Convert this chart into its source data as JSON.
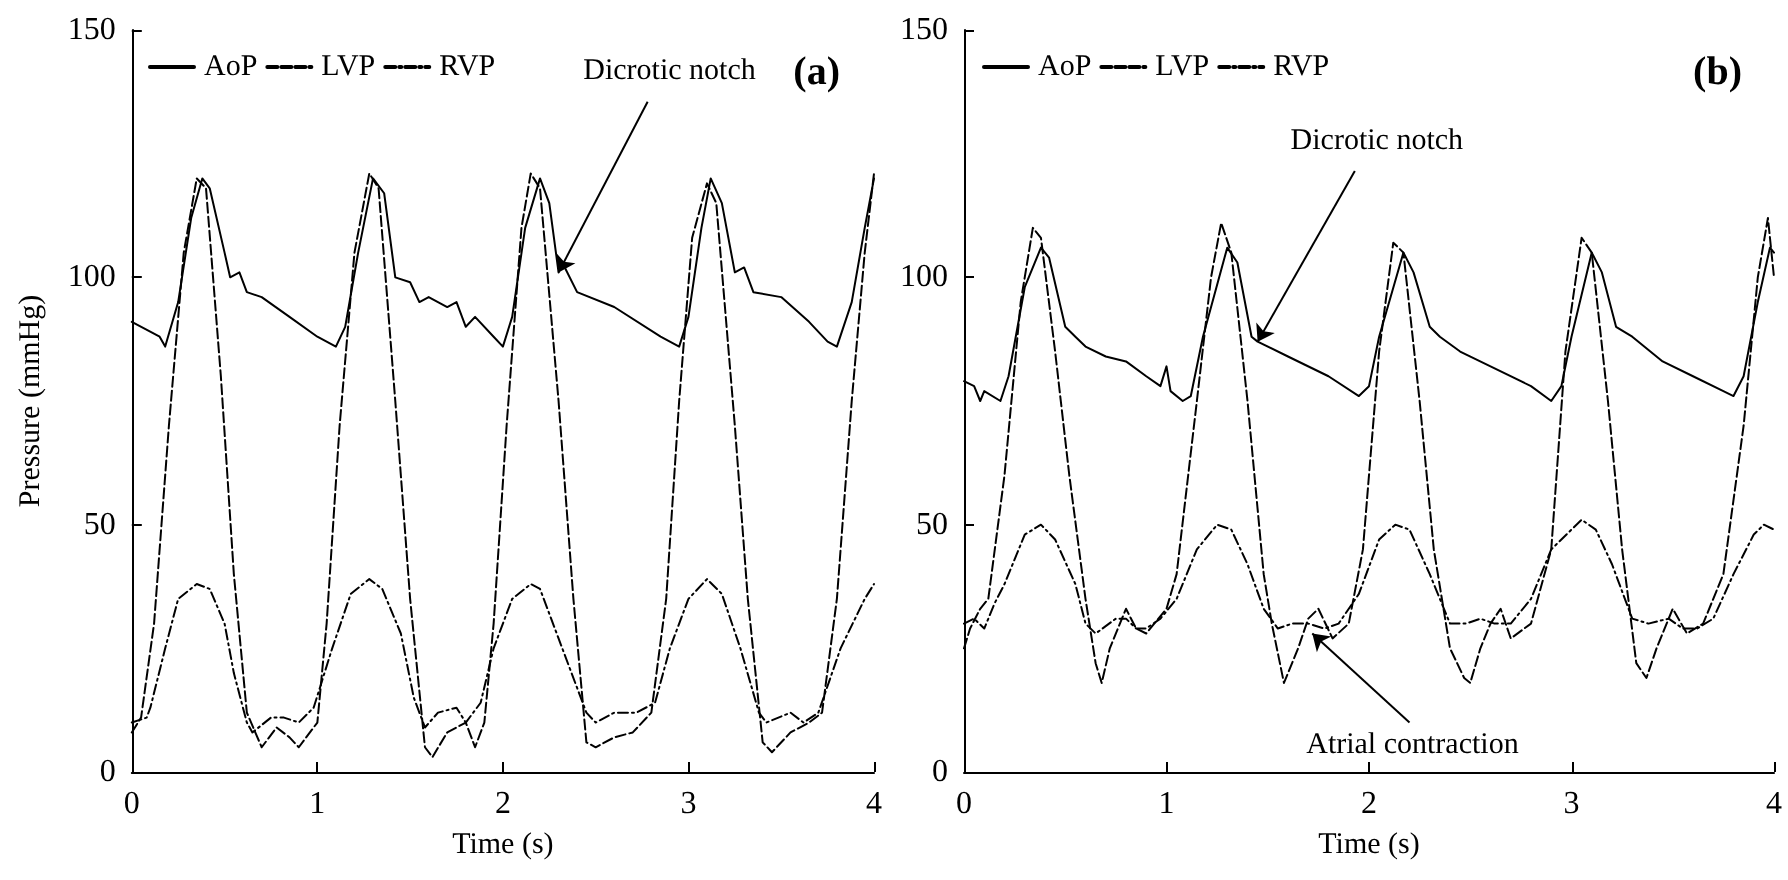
{
  "chart_data": [
    {
      "type": "line",
      "title": "(a)",
      "xlabel": "Time (s)",
      "ylabel": "Pressure (mmHg)",
      "xlim": [
        0,
        4
      ],
      "xticks": [
        0,
        1,
        2,
        3,
        4
      ],
      "ylim": [
        0,
        150
      ],
      "yticks": [
        0,
        50,
        100,
        150
      ],
      "grid": false,
      "legend": "top left",
      "marker": "none",
      "annotations": [
        {
          "text": "Dicrotic notch",
          "x": 2.3,
          "y": 101
        }
      ],
      "series": [
        {
          "name": "AoP",
          "color": "#000000",
          "line_style": "solid",
          "x": [
            0,
            0.15,
            0.18,
            0.25,
            0.32,
            0.38,
            0.42,
            0.5,
            0.53,
            0.58,
            0.62,
            0.7,
            0.85,
            1.0,
            1.1,
            1.15,
            1.22,
            1.3,
            1.36,
            1.42,
            1.5,
            1.55,
            1.6,
            1.7,
            1.75,
            1.8,
            1.85,
            1.95,
            2.0,
            2.05,
            2.12,
            2.2,
            2.25,
            2.3,
            2.32,
            2.4,
            2.6,
            2.85,
            2.95,
            3.0,
            3.07,
            3.12,
            3.18,
            3.25,
            3.3,
            3.35,
            3.5,
            3.65,
            3.75,
            3.8,
            3.88,
            3.95,
            4.0
          ],
          "values": [
            91,
            88,
            86,
            95,
            112,
            120,
            118,
            105,
            100,
            101,
            97,
            96,
            92,
            88,
            86,
            90,
            105,
            120,
            117,
            100,
            99,
            95,
            96,
            94,
            95,
            90,
            92,
            88,
            86,
            92,
            110,
            120,
            115,
            101,
            103,
            97,
            94,
            88,
            86,
            92,
            110,
            120,
            115,
            101,
            102,
            97,
            96,
            91,
            87,
            86,
            95,
            110,
            120
          ]
        },
        {
          "name": "LVP",
          "color": "#000000",
          "line_style": "dashed",
          "x": [
            0,
            0.05,
            0.12,
            0.2,
            0.28,
            0.35,
            0.4,
            0.48,
            0.55,
            0.62,
            0.7,
            0.78,
            0.85,
            0.9,
            1.0,
            1.05,
            1.12,
            1.2,
            1.28,
            1.33,
            1.42,
            1.5,
            1.58,
            1.62,
            1.7,
            1.8,
            1.85,
            1.9,
            1.95,
            2.02,
            2.1,
            2.15,
            2.2,
            2.3,
            2.38,
            2.45,
            2.5,
            2.6,
            2.7,
            2.8,
            2.88,
            2.95,
            3.02,
            3.1,
            3.15,
            3.25,
            3.32,
            3.4,
            3.45,
            3.55,
            3.65,
            3.72,
            3.8,
            3.88,
            3.95,
            4.0
          ],
          "values": [
            8,
            11,
            30,
            70,
            105,
            120,
            118,
            80,
            40,
            12,
            5,
            9,
            7,
            5,
            10,
            30,
            70,
            105,
            121,
            118,
            75,
            35,
            5,
            3,
            8,
            10,
            5,
            10,
            30,
            70,
            110,
            121,
            118,
            75,
            35,
            6,
            5,
            7,
            8,
            12,
            35,
            75,
            108,
            119,
            115,
            70,
            35,
            6,
            4,
            8,
            10,
            12,
            35,
            75,
            105,
            121
          ]
        },
        {
          "name": "RVP",
          "color": "#000000",
          "line_style": "dotted",
          "x": [
            0,
            0.08,
            0.1,
            0.18,
            0.25,
            0.35,
            0.42,
            0.5,
            0.55,
            0.62,
            0.65,
            0.75,
            0.82,
            0.9,
            0.98,
            1.08,
            1.18,
            1.28,
            1.35,
            1.45,
            1.52,
            1.58,
            1.65,
            1.75,
            1.8,
            1.88,
            1.95,
            2.05,
            2.15,
            2.2,
            2.32,
            2.45,
            2.5,
            2.6,
            2.72,
            2.82,
            2.9,
            3.0,
            3.1,
            3.18,
            3.28,
            3.38,
            3.42,
            3.55,
            3.62,
            3.7,
            3.82,
            3.95,
            4.0
          ],
          "values": [
            10,
            11,
            13,
            25,
            35,
            38,
            37,
            30,
            20,
            10,
            8,
            11,
            11,
            10,
            13,
            25,
            36,
            39,
            37,
            28,
            15,
            9,
            12,
            13,
            10,
            14,
            25,
            35,
            38,
            37,
            25,
            12,
            10,
            12,
            12,
            14,
            25,
            35,
            39,
            36,
            25,
            12,
            10,
            12,
            10,
            12,
            25,
            35,
            38
          ]
        }
      ]
    },
    {
      "type": "line",
      "title": "(b)",
      "xlabel": "Time (s)",
      "xlim": [
        0,
        4
      ],
      "xticks": [
        0,
        1,
        2,
        3,
        4
      ],
      "ylim": [
        0,
        150
      ],
      "yticks": [
        0,
        50,
        100,
        150
      ],
      "grid": false,
      "legend": "top left",
      "marker": "none",
      "annotations": [
        {
          "text": "Dicrotic notch",
          "x": 1.45,
          "y": 87
        },
        {
          "text": "Atrial contraction",
          "x": 1.72,
          "y": 28
        }
      ],
      "series": [
        {
          "name": "AoP",
          "color": "#000000",
          "line_style": "solid",
          "x": [
            0,
            0.05,
            0.08,
            0.1,
            0.18,
            0.22,
            0.3,
            0.38,
            0.42,
            0.5,
            0.55,
            0.6,
            0.7,
            0.8,
            0.9,
            0.97,
            1.0,
            1.02,
            1.08,
            1.12,
            1.18,
            1.3,
            1.35,
            1.42,
            1.45,
            1.6,
            1.8,
            1.95,
            2.0,
            2.05,
            2.17,
            2.22,
            2.3,
            2.35,
            2.45,
            2.6,
            2.8,
            2.9,
            2.95,
            3.0,
            3.1,
            3.15,
            3.22,
            3.3,
            3.45,
            3.6,
            3.75,
            3.8,
            3.85,
            3.92,
            3.98,
            4.0
          ],
          "values": [
            79,
            78,
            75,
            77,
            75,
            80,
            98,
            106,
            104,
            90,
            88,
            86,
            84,
            83,
            80,
            78,
            82,
            77,
            75,
            76,
            88,
            106,
            103,
            88,
            87,
            84,
            80,
            76,
            78,
            88,
            105,
            101,
            90,
            88,
            85,
            82,
            78,
            75,
            78,
            88,
            105,
            101,
            90,
            88,
            83,
            80,
            77,
            76,
            80,
            95,
            106,
            105
          ]
        },
        {
          "name": "LVP",
          "color": "#000000",
          "line_style": "dashed",
          "x": [
            0,
            0.03,
            0.08,
            0.12,
            0.2,
            0.28,
            0.34,
            0.38,
            0.45,
            0.52,
            0.6,
            0.65,
            0.68,
            0.72,
            0.78,
            0.8,
            0.85,
            0.9,
            1.0,
            1.05,
            1.15,
            1.22,
            1.27,
            1.32,
            1.4,
            1.48,
            1.52,
            1.58,
            1.65,
            1.7,
            1.75,
            1.82,
            1.9,
            1.97,
            2.05,
            2.12,
            2.17,
            2.25,
            2.32,
            2.4,
            2.47,
            2.5,
            2.55,
            2.6,
            2.65,
            2.7,
            2.8,
            2.9,
            2.97,
            3.05,
            3.1,
            3.18,
            3.25,
            3.32,
            3.37,
            3.42,
            3.5,
            3.57,
            3.65,
            3.75,
            3.85,
            3.92,
            3.97,
            4.0
          ],
          "values": [
            25,
            29,
            33,
            35,
            60,
            95,
            110,
            108,
            85,
            60,
            35,
            22,
            18,
            25,
            31,
            33,
            29,
            28,
            33,
            40,
            75,
            100,
            111,
            105,
            75,
            40,
            30,
            18,
            25,
            31,
            33,
            27,
            30,
            45,
            85,
            107,
            105,
            75,
            45,
            25,
            19,
            18,
            25,
            30,
            33,
            27,
            30,
            45,
            85,
            108,
            105,
            75,
            45,
            22,
            19,
            25,
            33,
            28,
            30,
            40,
            70,
            100,
            112,
            100
          ]
        },
        {
          "name": "RVP",
          "color": "#000000",
          "line_style": "dotted",
          "x": [
            0,
            0.05,
            0.1,
            0.15,
            0.2,
            0.3,
            0.38,
            0.45,
            0.55,
            0.6,
            0.65,
            0.75,
            0.8,
            0.85,
            0.9,
            0.97,
            1.05,
            1.15,
            1.25,
            1.32,
            1.4,
            1.48,
            1.55,
            1.62,
            1.7,
            1.78,
            1.85,
            1.95,
            2.05,
            2.13,
            2.2,
            2.3,
            2.4,
            2.48,
            2.55,
            2.62,
            2.7,
            2.8,
            2.9,
            3.05,
            3.12,
            3.2,
            3.3,
            3.38,
            3.48,
            3.55,
            3.62,
            3.7,
            3.8,
            3.9,
            3.95,
            4.0
          ],
          "values": [
            30,
            31,
            29,
            34,
            38,
            48,
            50,
            47,
            38,
            30,
            28,
            31,
            31,
            29,
            29,
            31,
            35,
            45,
            50,
            49,
            42,
            33,
            29,
            30,
            30,
            29,
            30,
            36,
            47,
            50,
            49,
            40,
            30,
            30,
            31,
            30,
            30,
            35,
            45,
            51,
            49,
            42,
            31,
            30,
            31,
            29,
            29,
            31,
            40,
            48,
            50,
            49
          ]
        }
      ]
    }
  ]
}
